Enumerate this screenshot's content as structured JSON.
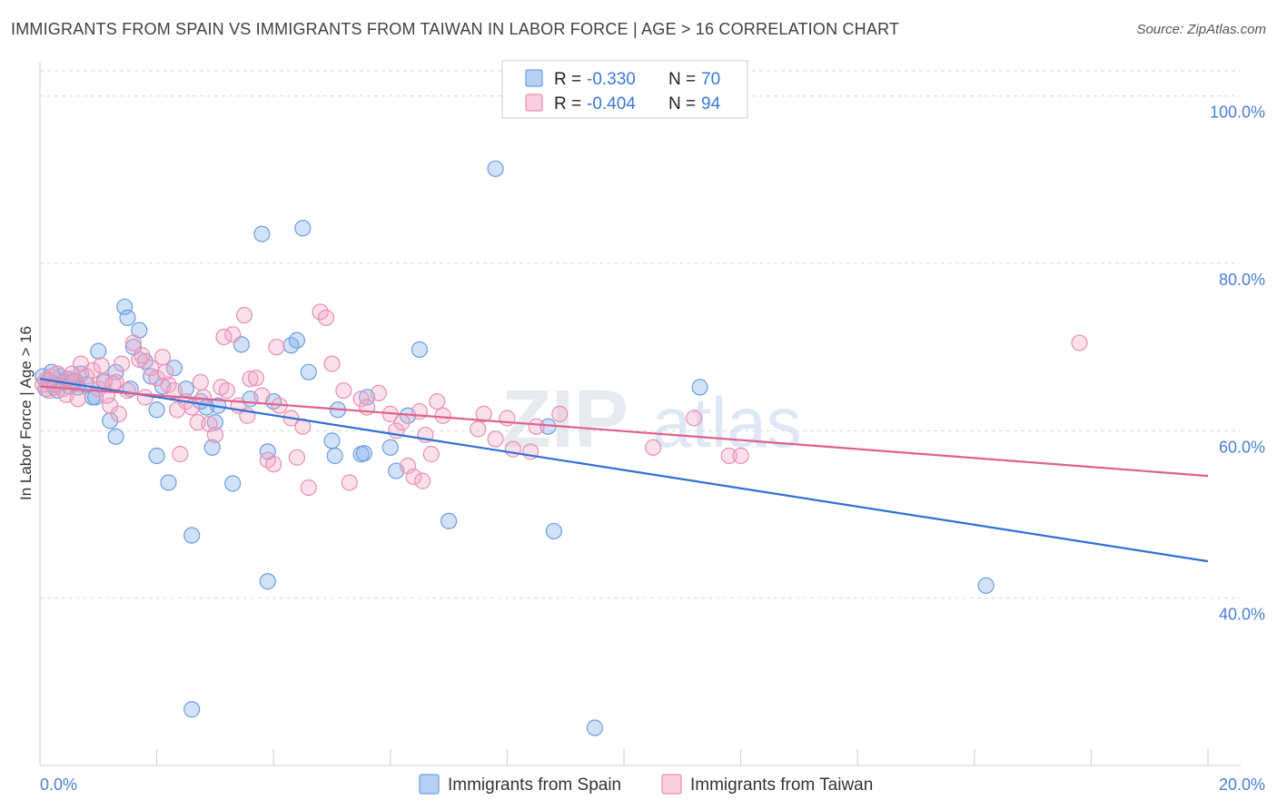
{
  "title": "IMMIGRANTS FROM SPAIN VS IMMIGRANTS FROM TAIWAN IN LABOR FORCE | AGE > 16 CORRELATION CHART",
  "source": "Source: ZipAtlas.com",
  "watermark": {
    "zip": "ZIP",
    "atlas": "atlas"
  },
  "colors": {
    "spain": "#7aaae8",
    "spain_line": "#2f6fd6",
    "taiwan": "#f2a6c2",
    "taiwan_line": "#e0608c",
    "tick": "#4a7fd4"
  },
  "chart_data": {
    "type": "scatter",
    "ylabel": "In Labor Force | Age > 16",
    "xlim": [
      0,
      20
    ],
    "ylim": [
      20,
      103
    ],
    "x_tick_labels": [
      "0.0%",
      "20.0%"
    ],
    "y_ticks": [
      40,
      60,
      80,
      100
    ],
    "y_tick_labels": [
      "40.0%",
      "60.0%",
      "80.0%",
      "100.0%"
    ],
    "grid": "horizontal-dashed",
    "legend": {
      "placement": "top-center",
      "entries": [
        {
          "r_label": "R =",
          "r_value": "-0.330",
          "n_label": "N =",
          "n_value": "70"
        },
        {
          "r_label": "R =",
          "r_value": "-0.404",
          "n_label": "N =",
          "n_value": "94"
        }
      ]
    },
    "series": [
      {
        "name": "Immigrants from Spain",
        "trend": {
          "x": [
            0,
            20
          ],
          "y": [
            66.2,
            44.4
          ]
        },
        "points": [
          [
            0.05,
            66.5
          ],
          [
            0.1,
            65.0
          ],
          [
            0.15,
            66.0
          ],
          [
            0.2,
            67.0
          ],
          [
            0.25,
            65.5
          ],
          [
            0.3,
            64.8
          ],
          [
            0.35,
            66.5
          ],
          [
            0.4,
            65.8
          ],
          [
            0.45,
            66.2
          ],
          [
            0.5,
            65.3
          ],
          [
            0.55,
            65.8
          ],
          [
            0.6,
            66.0
          ],
          [
            0.65,
            65.2
          ],
          [
            0.7,
            66.8
          ],
          [
            0.8,
            65.5
          ],
          [
            0.9,
            64.0
          ],
          [
            1.0,
            69.5
          ],
          [
            1.1,
            65.8
          ],
          [
            1.2,
            61.2
          ],
          [
            1.3,
            59.3
          ],
          [
            1.45,
            74.8
          ],
          [
            1.55,
            65.0
          ],
          [
            1.7,
            72.0
          ],
          [
            1.8,
            68.3
          ],
          [
            1.9,
            66.5
          ],
          [
            2.0,
            57.0
          ],
          [
            2.1,
            65.3
          ],
          [
            2.2,
            53.8
          ],
          [
            2.3,
            67.5
          ],
          [
            2.5,
            65.0
          ],
          [
            2.6,
            47.5
          ],
          [
            2.75,
            63.5
          ],
          [
            2.85,
            62.8
          ],
          [
            2.95,
            58.0
          ],
          [
            3.0,
            61.0
          ],
          [
            3.05,
            63.0
          ],
          [
            3.3,
            53.7
          ],
          [
            3.45,
            70.3
          ],
          [
            3.6,
            63.8
          ],
          [
            3.8,
            83.5
          ],
          [
            3.9,
            42.0
          ],
          [
            4.0,
            63.5
          ],
          [
            4.3,
            70.2
          ],
          [
            4.4,
            70.8
          ],
          [
            4.6,
            67.0
          ],
          [
            5.0,
            58.8
          ],
          [
            5.05,
            57.0
          ],
          [
            5.1,
            62.5
          ],
          [
            5.5,
            57.2
          ],
          [
            5.55,
            57.3
          ],
          [
            5.6,
            64.0
          ],
          [
            6.1,
            55.2
          ],
          [
            6.3,
            61.8
          ],
          [
            6.5,
            69.7
          ],
          [
            7.0,
            49.2
          ],
          [
            7.8,
            91.3
          ],
          [
            8.7,
            60.5
          ],
          [
            8.8,
            48.0
          ],
          [
            9.5,
            24.5
          ],
          [
            11.3,
            65.2
          ],
          [
            16.2,
            41.5
          ],
          [
            2.6,
            26.7
          ],
          [
            3.9,
            57.5
          ],
          [
            4.5,
            84.2
          ],
          [
            1.6,
            70.0
          ],
          [
            1.5,
            73.5
          ],
          [
            0.95,
            64.0
          ],
          [
            1.3,
            67.0
          ],
          [
            6.0,
            58.0
          ],
          [
            2.0,
            62.5
          ]
        ]
      },
      {
        "name": "Immigrants from Taiwan",
        "trend": {
          "x": [
            0,
            20
          ],
          "y": [
            65.3,
            54.6
          ]
        },
        "points": [
          [
            0.05,
            65.5
          ],
          [
            0.1,
            66.0
          ],
          [
            0.15,
            64.8
          ],
          [
            0.2,
            66.5
          ],
          [
            0.25,
            65.2
          ],
          [
            0.3,
            66.8
          ],
          [
            0.4,
            65.0
          ],
          [
            0.5,
            66.2
          ],
          [
            0.6,
            65.8
          ],
          [
            0.7,
            68.0
          ],
          [
            0.8,
            66.5
          ],
          [
            0.9,
            67.2
          ],
          [
            1.0,
            65.0
          ],
          [
            1.1,
            66.0
          ],
          [
            1.2,
            63.0
          ],
          [
            1.3,
            65.8
          ],
          [
            1.4,
            68.0
          ],
          [
            1.5,
            64.8
          ],
          [
            1.6,
            70.5
          ],
          [
            1.7,
            68.5
          ],
          [
            1.8,
            64.0
          ],
          [
            1.9,
            67.5
          ],
          [
            2.0,
            66.3
          ],
          [
            2.1,
            68.8
          ],
          [
            2.2,
            65.5
          ],
          [
            2.3,
            64.8
          ],
          [
            2.4,
            57.2
          ],
          [
            2.5,
            63.5
          ],
          [
            2.6,
            62.8
          ],
          [
            2.7,
            61.0
          ],
          [
            2.8,
            64.0
          ],
          [
            2.9,
            60.8
          ],
          [
            3.0,
            59.5
          ],
          [
            3.1,
            65.2
          ],
          [
            3.2,
            64.8
          ],
          [
            3.3,
            71.5
          ],
          [
            3.4,
            63.0
          ],
          [
            3.5,
            73.8
          ],
          [
            3.6,
            66.2
          ],
          [
            3.7,
            66.3
          ],
          [
            3.8,
            64.2
          ],
          [
            3.9,
            56.5
          ],
          [
            4.0,
            56.0
          ],
          [
            4.1,
            63.0
          ],
          [
            4.3,
            61.5
          ],
          [
            4.4,
            56.8
          ],
          [
            4.5,
            60.5
          ],
          [
            4.6,
            53.2
          ],
          [
            4.8,
            74.2
          ],
          [
            4.9,
            73.5
          ],
          [
            5.0,
            68.0
          ],
          [
            5.2,
            64.8
          ],
          [
            5.3,
            53.8
          ],
          [
            5.5,
            63.8
          ],
          [
            5.6,
            62.8
          ],
          [
            5.8,
            64.5
          ],
          [
            6.0,
            62.0
          ],
          [
            6.1,
            60.0
          ],
          [
            6.2,
            61.0
          ],
          [
            6.3,
            55.8
          ],
          [
            6.4,
            54.5
          ],
          [
            6.5,
            62.3
          ],
          [
            6.6,
            59.5
          ],
          [
            6.7,
            57.2
          ],
          [
            6.8,
            63.5
          ],
          [
            6.9,
            61.8
          ],
          [
            7.5,
            60.2
          ],
          [
            7.6,
            62.0
          ],
          [
            7.8,
            59.0
          ],
          [
            8.0,
            61.5
          ],
          [
            8.1,
            57.8
          ],
          [
            8.4,
            57.5
          ],
          [
            8.5,
            60.5
          ],
          [
            8.9,
            62.0
          ],
          [
            10.5,
            58.0
          ],
          [
            11.2,
            61.5
          ],
          [
            11.8,
            57.0
          ],
          [
            12.0,
            57.0
          ],
          [
            17.8,
            70.5
          ],
          [
            0.45,
            64.3
          ],
          [
            0.55,
            66.8
          ],
          [
            0.65,
            63.8
          ],
          [
            1.05,
            67.8
          ],
          [
            1.15,
            64.2
          ],
          [
            1.25,
            65.6
          ],
          [
            1.35,
            62.0
          ],
          [
            1.75,
            69.0
          ],
          [
            2.15,
            67.0
          ],
          [
            2.35,
            62.5
          ],
          [
            2.75,
            65.8
          ],
          [
            3.15,
            71.2
          ],
          [
            3.55,
            61.8
          ],
          [
            4.05,
            70.0
          ],
          [
            6.55,
            54.0
          ]
        ]
      }
    ]
  }
}
